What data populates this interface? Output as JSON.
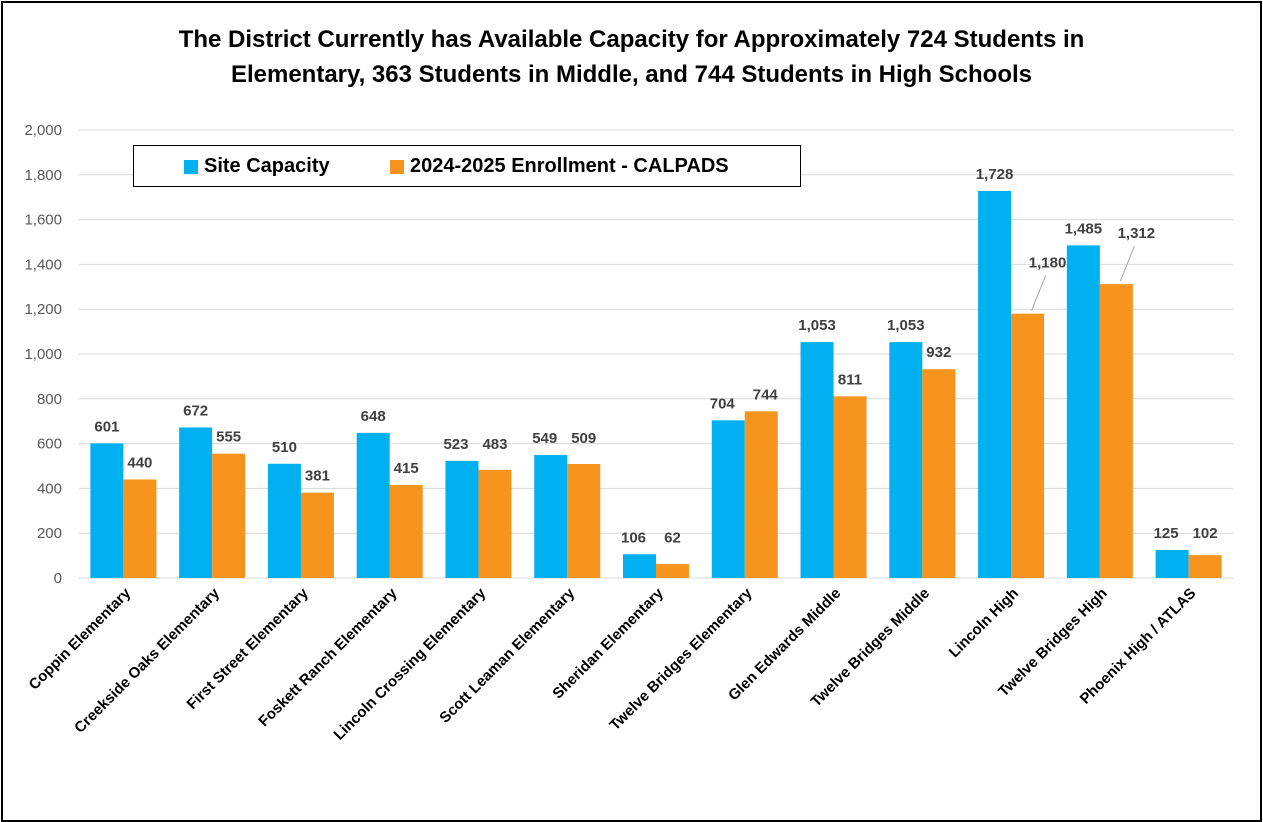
{
  "title_lines": [
    "The District Currently has Available Capacity for Approximately 724 Students in",
    "Elementary, 363 Students in Middle, and 744 Students in High Schools"
  ],
  "colors": {
    "site_capacity": "#00b0f0",
    "enrollment": "#f7941d",
    "grid": "#d9d9d9",
    "axis_text": "#595959",
    "label_text": "#404040"
  },
  "chart_data": {
    "type": "bar",
    "title": "The District Currently has Available Capacity for Approximately 724 Students in Elementary, 363 Students in Middle, and 744 Students in High Schools",
    "xlabel": "",
    "ylabel": "",
    "ylim": [
      0,
      2000
    ],
    "yticks": [
      "0",
      "200",
      "400",
      "600",
      "800",
      "1,000",
      "1,200",
      "1,400",
      "1,600",
      "1,800",
      "2,000"
    ],
    "grid": true,
    "legend_position": "top-left",
    "categories": [
      "Coppin Elementary",
      "Creekside Oaks Elementary",
      "First Street Elementary",
      "Foskett Ranch Elementary",
      "Lincoln Crossing Elementary",
      "Scott Leaman Elementary",
      "Sheridan Elementary",
      "Twelve Bridges Elementary",
      "Glen Edwards Middle",
      "Twelve Bridges Middle",
      "Lincoln High",
      "Twelve Bridges High",
      "Phoenix High / ATLAS"
    ],
    "series": [
      {
        "name": "Site Capacity",
        "values": [
          601,
          672,
          510,
          648,
          523,
          549,
          106,
          704,
          1053,
          1053,
          1728,
          1485,
          125
        ],
        "labels": [
          "601",
          "672",
          "510",
          "648",
          "523",
          "549",
          "106",
          "704",
          "1,053",
          "1,053",
          "1,728",
          "1,485",
          "125"
        ]
      },
      {
        "name": "2024-2025 Enrollment - CALPADS",
        "values": [
          440,
          555,
          381,
          415,
          483,
          509,
          62,
          744,
          811,
          932,
          1180,
          1312,
          102
        ],
        "labels": [
          "440",
          "555",
          "381",
          "415",
          "483",
          "509",
          "62",
          "744",
          "811",
          "932",
          "1,180",
          "1,312",
          "102"
        ]
      }
    ]
  }
}
